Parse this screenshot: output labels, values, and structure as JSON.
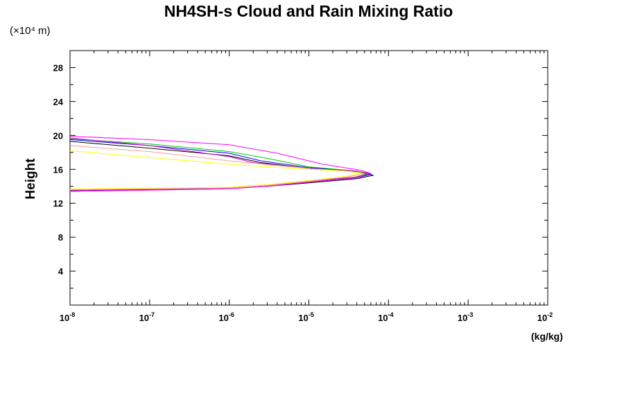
{
  "chart_data": {
    "type": "line",
    "title": "NH4SH-s Cloud and Rain Mixing Ratio",
    "ylabel": "Height",
    "yunit": "(×10⁴ m)",
    "xunit": "(kg/kg)",
    "x_scale": "log",
    "xlim": [
      1e-08,
      0.01
    ],
    "ylim": [
      0,
      30
    ],
    "x_ticks": [
      {
        "value": 1e-08,
        "base": "10",
        "exp": "-8"
      },
      {
        "value": 1e-07,
        "base": "10",
        "exp": "-7"
      },
      {
        "value": 1e-06,
        "base": "10",
        "exp": "-6"
      },
      {
        "value": 1e-05,
        "base": "10",
        "exp": "-5"
      },
      {
        "value": 0.0001,
        "base": "10",
        "exp": "-4"
      },
      {
        "value": 0.001,
        "base": "10",
        "exp": "-3"
      },
      {
        "value": 0.01,
        "base": "10",
        "exp": "-2"
      }
    ],
    "y_ticks": [
      4,
      8,
      12,
      16,
      20,
      24,
      28
    ],
    "grid": false,
    "legend": "none",
    "series": [
      {
        "color": "#000000",
        "x": [
          1e-08,
          1e-06,
          3e-06,
          1e-05,
          4e-05,
          6.5e-05,
          4e-05,
          1e-05,
          2.5e-06,
          1e-06,
          1e-07,
          1e-08
        ],
        "y": [
          13.5,
          13.75,
          14.0,
          14.4,
          14.9,
          15.3,
          15.7,
          16.1,
          16.8,
          17.6,
          18.5,
          19.3
        ]
      },
      {
        "color": "#0000ff",
        "x": [
          1e-08,
          1e-06,
          3e-06,
          1e-05,
          4e-05,
          6e-05,
          4e-05,
          1e-05,
          2.5e-06,
          1e-06,
          1e-07,
          1e-08
        ],
        "y": [
          13.5,
          13.75,
          14.0,
          14.5,
          15.0,
          15.4,
          15.8,
          16.2,
          17.0,
          17.9,
          18.8,
          19.5
        ]
      },
      {
        "color": "#00cc00",
        "x": [
          1e-08,
          1e-06,
          3e-06,
          1e-05,
          3.5e-05,
          5.5e-05,
          3.5e-05,
          1e-05,
          3e-06,
          1e-06,
          1e-07,
          1e-08
        ],
        "y": [
          13.55,
          13.8,
          14.05,
          14.5,
          15.0,
          15.5,
          15.85,
          16.3,
          17.3,
          18.1,
          19.0,
          19.6
        ]
      },
      {
        "color": "#ff00ff",
        "x": [
          1e-08,
          1e-06,
          3e-06,
          1e-05,
          4e-05,
          6e-05,
          4.5e-05,
          1.5e-05,
          4e-06,
          1e-06,
          1e-07,
          1e-08
        ],
        "y": [
          13.4,
          13.7,
          14.0,
          14.5,
          15.0,
          15.5,
          15.9,
          16.6,
          17.9,
          18.9,
          19.5,
          19.9
        ]
      },
      {
        "color": "#cc00cc",
        "x": [
          1e-08,
          1e-06,
          3e-06,
          1e-05,
          4e-05,
          6e-05,
          4e-05,
          1e-05,
          2e-06,
          1e-06,
          1e-07,
          1e-08
        ],
        "y": [
          13.5,
          13.8,
          14.1,
          14.6,
          15.1,
          15.5,
          15.8,
          16.1,
          16.8,
          17.5,
          18.8,
          19.7
        ]
      },
      {
        "color": "#ff9999",
        "x": [
          1e-08,
          1e-06,
          3e-06,
          1e-05,
          3e-05,
          5e-05,
          3e-05,
          1e-05,
          1e-06,
          1e-07,
          1e-08
        ],
        "y": [
          13.6,
          13.8,
          14.1,
          14.6,
          15.1,
          15.5,
          15.8,
          16.1,
          17.0,
          18.1,
          18.8
        ]
      },
      {
        "color": "#ffff00",
        "x": [
          1e-08,
          1e-06,
          3e-06,
          1e-05,
          3e-05,
          4.5e-05,
          3e-05,
          1e-05,
          1e-06,
          1e-07,
          1e-08
        ],
        "y": [
          13.7,
          13.9,
          14.2,
          14.7,
          15.2,
          15.6,
          15.8,
          16.0,
          16.6,
          17.4,
          18.2
        ]
      }
    ]
  }
}
